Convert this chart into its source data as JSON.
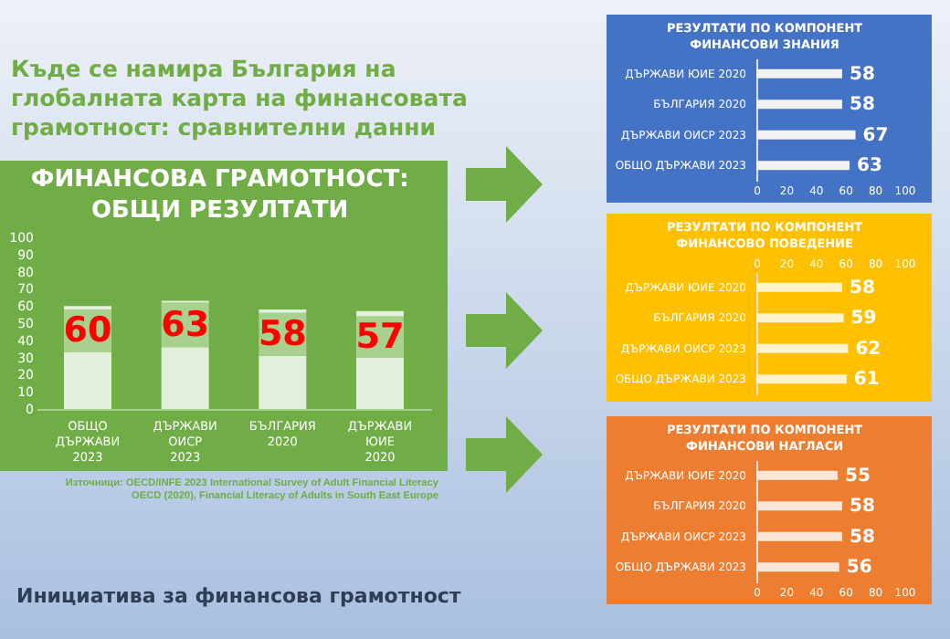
{
  "chart_data": [
    {
      "type": "other",
      "title": "Къде се намира България на глобалната карта на финансовата грамотност: сравнителни данни",
      "annotations": [
        "Източници: OECD/INFE 2023 International Survey of Adult Financial Literacy",
        "OECD (2020), Financial Literacy of Adults in South East Europe",
        "Инициатива за финансова грамотност"
      ]
    },
    {
      "type": "bar",
      "title": "ФИНАНСОВА ГРАМОТНОСТ:\nОБЩИ РЕЗУЛТАТИ",
      "categories": [
        "ОБЩО ДЪРЖАВИ 2023",
        "ДЪРЖАВИ ОИСР 2023",
        "БЪЛГАРИЯ 2020",
        "ДЪРЖАВИ ЮИЕ 2020"
      ],
      "stacked": true,
      "series": [
        {
          "color": "#e2efda",
          "values": [
            33,
            36,
            31,
            30
          ]
        },
        {
          "color": "#a9d18e",
          "values": [
            25,
            26,
            25,
            24
          ]
        },
        {
          "color": "#e2efda",
          "values": [
            2,
            1,
            2,
            3
          ]
        }
      ],
      "totals": [
        "60",
        "63",
        "58",
        "57"
      ],
      "ylim": [
        0,
        100
      ],
      "yticks": [
        0,
        10,
        20,
        30,
        40,
        50,
        60,
        70,
        80,
        90,
        100
      ]
    },
    {
      "type": "bar",
      "orientation": "horizontal",
      "title": "РЕЗУЛТАТИ ПО КОМПОНЕНТ\nФИНАНСОВИ ЗНАНИЯ",
      "categories": [
        "ДЪРЖАВИ ЮИЕ 2020",
        "БЪЛГАРИЯ 2020",
        "ДЪРЖАВИ ОИСР 2023",
        "ОБЩО ДЪРЖАВИ 2023"
      ],
      "values": [
        58,
        58,
        67,
        63
      ],
      "color": "#f2f2f2",
      "data_labels": true,
      "xlim": [
        0,
        100
      ],
      "xticks": [
        0,
        20,
        40,
        60,
        80,
        100
      ]
    },
    {
      "type": "bar",
      "orientation": "horizontal",
      "title": "РЕЗУЛТАТИ ПО КОМПОНЕНТ\nФИНАНСОВО ПОВЕДЕНИЕ",
      "categories": [
        "ДЪРЖАВИ ЮИЕ 2020",
        "БЪЛГАРИЯ 2020",
        "ДЪРЖАВИ ОИСР 2023",
        "ОБЩО ДЪРЖАВИ 2023"
      ],
      "values": [
        58,
        59,
        62,
        61
      ],
      "color": "#fff2cc",
      "data_labels": true,
      "x2lim": [
        0,
        100
      ],
      "x2ticks": [
        0,
        20,
        40,
        60,
        80,
        100
      ]
    },
    {
      "type": "bar",
      "orientation": "horizontal",
      "title": "РЕЗУЛТАТИ ПО КОМПОНЕНТ\nФИНАНСОВИ НАГЛАСИ",
      "categories": [
        "ДЪРЖАВИ ЮИЕ 2020",
        "БЪЛГАРИЯ 2020",
        "ДЪРЖАВИ ОИСР 2023",
        "ОБЩО ДЪРЖАВИ 2023"
      ],
      "values": [
        55,
        58,
        58,
        56
      ],
      "color": "#fbe5d6",
      "data_labels": true,
      "xlim": [
        0,
        100
      ],
      "xticks": [
        0,
        20,
        40,
        60,
        80,
        100
      ]
    }
  ]
}
